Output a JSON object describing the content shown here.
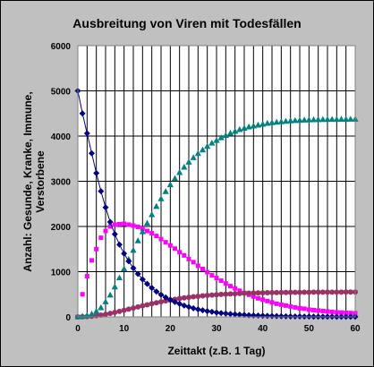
{
  "chart_data": {
    "type": "scatter",
    "title": "Ausbreitung von Viren mit Todesfällen",
    "xlabel": "Zeittakt (z.B. 1 Tag)",
    "ylabel_lines": [
      "Anzahl: Gesunde, Kranke, Immune,",
      "Verstorbene"
    ],
    "xlim": [
      0,
      60
    ],
    "ylim": [
      0,
      6000
    ],
    "x_ticks": [
      0,
      10,
      20,
      30,
      40,
      50,
      60
    ],
    "y_ticks": [
      0,
      1000,
      2000,
      3000,
      4000,
      5000,
      6000
    ],
    "grid": true,
    "x": [
      0,
      1,
      2,
      3,
      4,
      5,
      6,
      7,
      8,
      9,
      10,
      11,
      12,
      13,
      14,
      15,
      16,
      17,
      18,
      19,
      20,
      21,
      22,
      23,
      24,
      25,
      26,
      27,
      28,
      29,
      30,
      31,
      32,
      33,
      34,
      35,
      36,
      37,
      38,
      39,
      40,
      41,
      42,
      43,
      44,
      45,
      46,
      47,
      48,
      49,
      50,
      51,
      52,
      53,
      54,
      55,
      56,
      57,
      58,
      59,
      60
    ],
    "series": [
      {
        "color": "#000080",
        "marker": "diamond",
        "line": true,
        "values": [
          5000,
          4500,
          4060,
          3620,
          3180,
          2780,
          2420,
          2100,
          1830,
          1600,
          1400,
          1230,
          1080,
          950,
          830,
          730,
          640,
          560,
          490,
          430,
          380,
          330,
          290,
          250,
          220,
          190,
          165,
          145,
          127,
          111,
          97,
          85,
          74,
          65,
          57,
          50,
          44,
          38,
          33,
          29,
          25,
          22,
          19,
          17,
          15,
          13,
          11,
          10,
          9,
          8,
          7,
          6,
          5,
          5,
          4,
          4,
          3,
          3,
          3,
          2,
          2
        ]
      },
      {
        "color": "#ff00ff",
        "marker": "square",
        "line": false,
        "values": [
          0,
          500,
          900,
          1250,
          1500,
          1750,
          1900,
          2000,
          2040,
          2050,
          2060,
          2040,
          2020,
          1990,
          1950,
          1900,
          1850,
          1790,
          1720,
          1650,
          1580,
          1510,
          1430,
          1360,
          1280,
          1210,
          1130,
          1060,
          990,
          920,
          860,
          800,
          740,
          680,
          630,
          580,
          530,
          490,
          450,
          410,
          380,
          350,
          320,
          290,
          270,
          250,
          230,
          210,
          190,
          180,
          160,
          150,
          140,
          130,
          120,
          110,
          100,
          95,
          90,
          85,
          80
        ]
      },
      {
        "color": "#008080",
        "marker": "triangle",
        "line": false,
        "values": [
          0,
          10,
          30,
          60,
          120,
          200,
          330,
          480,
          660,
          860,
          1060,
          1270,
          1470,
          1680,
          1880,
          2070,
          2260,
          2440,
          2610,
          2770,
          2920,
          3060,
          3190,
          3310,
          3420,
          3520,
          3610,
          3690,
          3770,
          3840,
          3900,
          3960,
          4010,
          4060,
          4100,
          4140,
          4170,
          4200,
          4220,
          4240,
          4260,
          4280,
          4295,
          4305,
          4315,
          4325,
          4333,
          4340,
          4346,
          4351,
          4355,
          4358,
          4361,
          4363,
          4365,
          4366,
          4367,
          4368,
          4369,
          4370,
          4370
        ]
      },
      {
        "color": "#993366",
        "marker": "circle",
        "line": false,
        "values": [
          0,
          2,
          7,
          15,
          26,
          40,
          57,
          77,
          98,
          121,
          145,
          170,
          195,
          220,
          244,
          268,
          291,
          313,
          334,
          354,
          372,
          389,
          405,
          420,
          433,
          445,
          456,
          466,
          475,
          483,
          490,
          497,
          503,
          508,
          513,
          517,
          521,
          524,
          527,
          530,
          532,
          534,
          536,
          538,
          539,
          540,
          541,
          542,
          543,
          544,
          545,
          546,
          546,
          547,
          547,
          548,
          548,
          548,
          549,
          549,
          549
        ]
      }
    ]
  }
}
